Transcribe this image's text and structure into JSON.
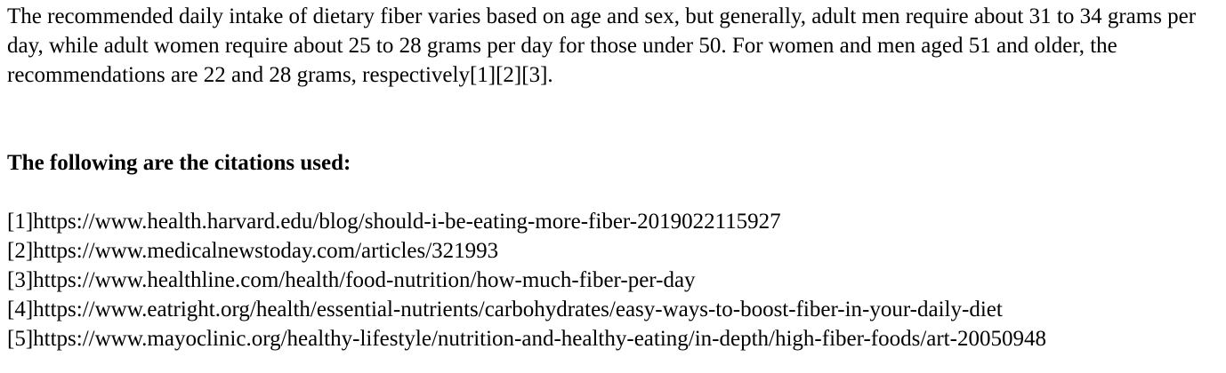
{
  "answer": {
    "text": "The recommended daily intake of dietary fiber varies based on age and sex, but generally, adult men require about 31 to 34 grams per day, while adult women require about 25 to 28 grams per day for those under 50. For women and men aged 51 and older, the recommendations are 22 and 28 grams, respectively[1][2][3]."
  },
  "citations": {
    "heading": "The following are the citations used:",
    "items": [
      "[1]https://www.health.harvard.edu/blog/should-i-be-eating-more-fiber-2019022115927",
      "[2]https://www.medicalnewstoday.com/articles/321993",
      "[3]https://www.healthline.com/health/food-nutrition/how-much-fiber-per-day",
      "[4]https://www.eatright.org/health/essential-nutrients/carbohydrates/easy-ways-to-boost-fiber-in-your-daily-diet",
      "[5]https://www.mayoclinic.org/healthy-lifestyle/nutrition-and-healthy-eating/in-depth/high-fiber-foods/art-20050948"
    ]
  }
}
